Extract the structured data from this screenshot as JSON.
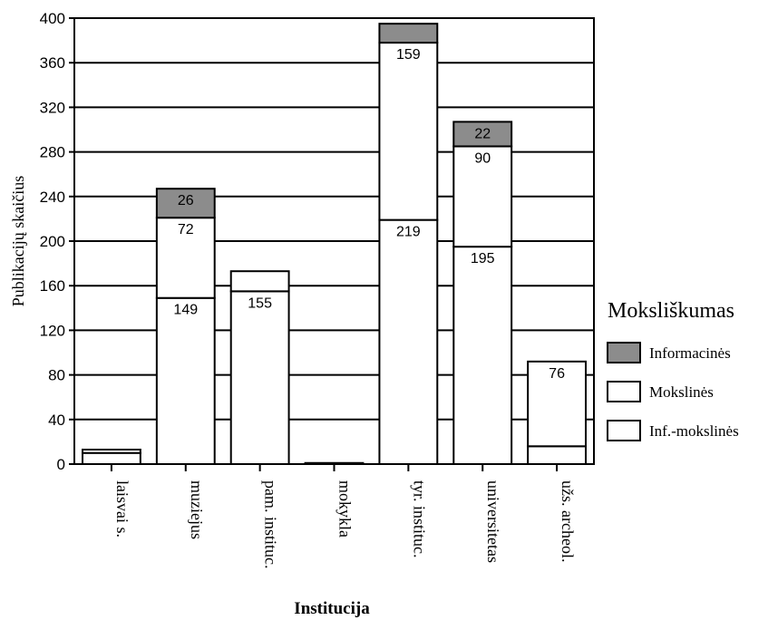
{
  "chart_data": {
    "type": "bar",
    "stacked": true,
    "ylabel": "Publikacijų skaičius",
    "xlabel": "Institucija",
    "ylim": [
      0,
      400
    ],
    "yticks": [
      0,
      40,
      80,
      120,
      160,
      200,
      240,
      280,
      320,
      360,
      400
    ],
    "grid": true,
    "legend_position": "right",
    "categories": [
      "laisvai s.",
      "muziejus",
      "pam. instituc.",
      "mokykla",
      "tyr. instituc.",
      "universitetas",
      "užs. archeol."
    ],
    "series": [
      {
        "name": "Inf.-mokslinės",
        "values": [
          10,
          149,
          155,
          1,
          219,
          195,
          16
        ],
        "labels": [
          "",
          "149",
          "155",
          "",
          "219",
          "195",
          ""
        ],
        "color": "#ffffff"
      },
      {
        "name": "Mokslinės",
        "values": [
          3,
          72,
          18,
          0,
          159,
          90,
          76
        ],
        "labels": [
          "",
          "72",
          "",
          "",
          "159",
          "90",
          "76"
        ],
        "color": "#ffffff"
      },
      {
        "name": "Informacinės",
        "values": [
          0,
          26,
          0,
          0,
          17,
          22,
          0
        ],
        "labels": [
          "",
          "26",
          "",
          "",
          "",
          "22",
          ""
        ],
        "color": "#8c8c8c"
      }
    ],
    "legend": {
      "title": "Moksliškumas",
      "entries": [
        "Informacinės",
        "Mokslinės",
        "Inf.-mokslinės"
      ]
    }
  }
}
